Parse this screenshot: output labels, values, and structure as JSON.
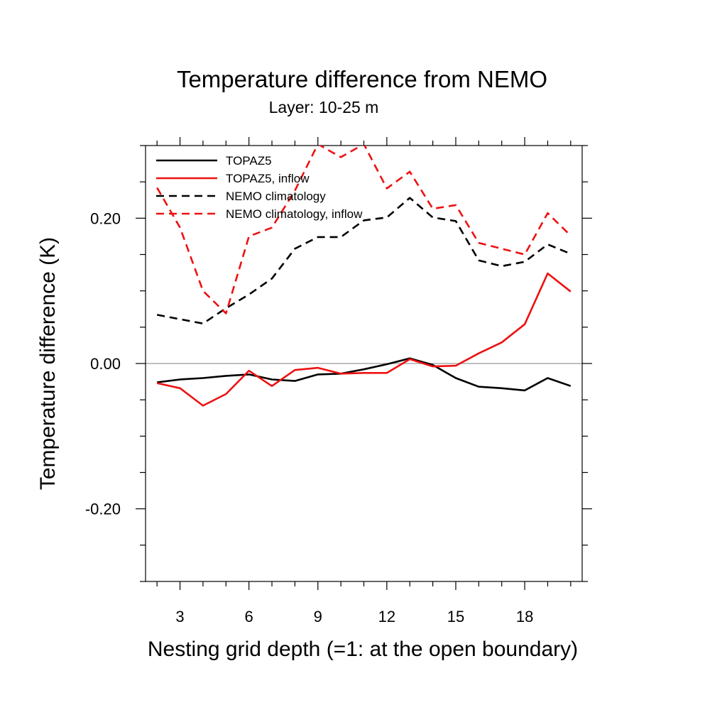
{
  "chart_data": {
    "type": "line",
    "title": "Temperature difference from NEMO",
    "subtitle": "Layer: 10-25 m",
    "xlabel": "Nesting grid depth (=1: at the open boundary)",
    "ylabel": "Temperature difference (K)",
    "xlim": [
      1.5,
      20.5
    ],
    "ylim": [
      -0.3,
      0.3
    ],
    "xticks": [
      3,
      6,
      9,
      12,
      15,
      18
    ],
    "xtick_labels": [
      "3",
      "6",
      "9",
      "12",
      "15",
      "18"
    ],
    "yticks": [
      -0.2,
      0.0,
      0.2
    ],
    "ytick_labels": [
      "-0.20",
      "0.00",
      "0.20"
    ],
    "zero_line": true,
    "legend_position": "top-left",
    "x": [
      2,
      3,
      4,
      5,
      6,
      7,
      8,
      9,
      10,
      11,
      12,
      13,
      14,
      15,
      16,
      17,
      18,
      19,
      20
    ],
    "series": [
      {
        "name": "TOPAZ5",
        "color": "#000000",
        "dash": "solid",
        "values": [
          -0.026,
          -0.022,
          -0.02,
          -0.017,
          -0.015,
          -0.022,
          -0.024,
          -0.015,
          -0.014,
          -0.008,
          -0.001,
          0.007,
          -0.002,
          -0.02,
          -0.032,
          -0.034,
          -0.037,
          -0.02,
          -0.031
        ]
      },
      {
        "name": "TOPAZ5, inflow",
        "color": "#ee1111",
        "dash": "solid",
        "values": [
          -0.027,
          -0.034,
          -0.058,
          -0.042,
          -0.01,
          -0.031,
          -0.009,
          -0.006,
          -0.014,
          -0.013,
          -0.013,
          0.006,
          -0.004,
          -0.003,
          0.014,
          0.029,
          0.054,
          0.124,
          0.099
        ]
      },
      {
        "name": "NEMO climatology",
        "color": "#000000",
        "dash": "dashed",
        "values": [
          0.067,
          0.061,
          0.055,
          0.076,
          0.095,
          0.117,
          0.158,
          0.174,
          0.174,
          0.197,
          0.201,
          0.228,
          0.201,
          0.196,
          0.142,
          0.134,
          0.14,
          0.164,
          0.151
        ]
      },
      {
        "name": "NEMO climatology, inflow",
        "color": "#ee1111",
        "dash": "dashed",
        "values": [
          0.242,
          0.187,
          0.1,
          0.069,
          0.175,
          0.187,
          0.238,
          0.302,
          0.284,
          0.302,
          0.241,
          0.264,
          0.213,
          0.218,
          0.166,
          0.158,
          0.15,
          0.207,
          0.176
        ]
      }
    ]
  }
}
